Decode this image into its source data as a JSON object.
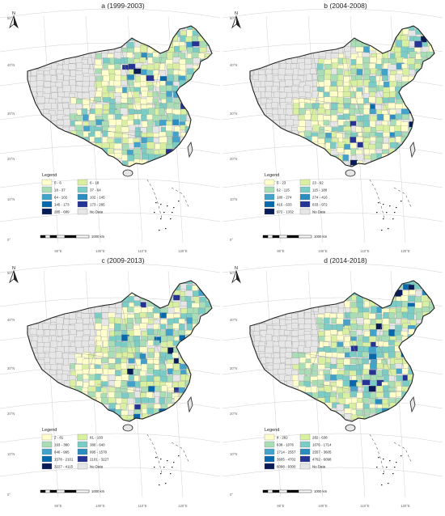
{
  "palette": {
    "c1": "#ffffcc",
    "c2": "#d9f0a3",
    "c3": "#a8ddb5",
    "c4": "#7bccc4",
    "c5": "#43a2ca",
    "c6": "#2b8cbe",
    "c7": "#0868ac",
    "c8": "#253494",
    "c9": "#081d58",
    "nodata": "#e6e6e6",
    "outline": "#222222",
    "graticule": "#d0d0d0"
  },
  "common": {
    "north_label": "N",
    "lat_labels": [
      "50°N",
      "40°N",
      "30°N",
      "20°N",
      "10°N",
      "0°"
    ],
    "lon_labels": [
      "90°E",
      "100°E",
      "110°E",
      "120°E"
    ],
    "scale_label": "1000 km",
    "legend_title": "Legend",
    "no_data_label": "No Data"
  },
  "maps": [
    {
      "title": "a (1999-2003)",
      "legend_left": [
        "0 - 6",
        "18 - 37",
        "64 - 102",
        "145 - 173",
        "285 - 689"
      ],
      "legend_right": [
        "6 - 18",
        "37 - 64",
        "102 - 145",
        "173 - 285"
      ]
    },
    {
      "title": "b (2004-2008)",
      "legend_left": [
        "0 - 23",
        "62 - 115",
        "180 - 274",
        "416 - 633",
        "972 - 1332"
      ],
      "legend_right": [
        "23 - 62",
        "115 - 180",
        "274 - 416",
        "633 - 972"
      ]
    },
    {
      "title": "c (2009-2013)",
      "legend_left": [
        "2 - 81",
        "193 - 380",
        "640 - 995",
        "1578 - 2101",
        "3227 - 4115"
      ],
      "legend_right": [
        "81 - 193",
        "380 - 640",
        "995 - 1578",
        "2101 - 3227"
      ]
    },
    {
      "title": "d (2014-2018)",
      "legend_left": [
        "4 - 282",
        "638 - 1076",
        "1714 - 2557",
        "3605 - 4702",
        "6098 - 9300"
      ],
      "legend_right": [
        "282 - 638",
        "1076 - 1714",
        "2557 - 3605",
        "4702 - 6098"
      ]
    }
  ]
}
